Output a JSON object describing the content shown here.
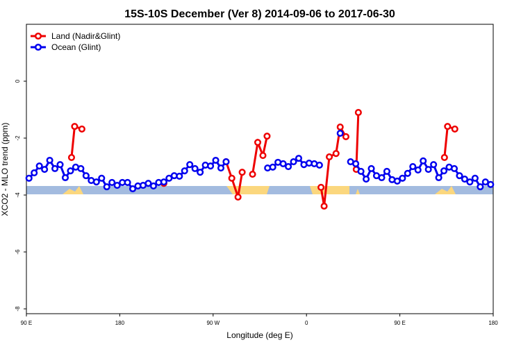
{
  "chart_data": {
    "type": "line",
    "title": "15S-10S December (Ver 8)   2014-09-06 to 2017-06-30",
    "x_label": "Longitude (deg E)",
    "y_label": "XCO2 - MLO trend (ppm)",
    "xlim": [
      90,
      540
    ],
    "ylim": [
      -8.17,
      2
    ],
    "xticks": [
      {
        "value": 90,
        "label": "90 E"
      },
      {
        "value": 180,
        "label": "180"
      },
      {
        "value": 270,
        "label": "90 W"
      },
      {
        "value": 360,
        "label": "0"
      },
      {
        "value": 450,
        "label": "90 E"
      },
      {
        "value": 540,
        "label": "180"
      }
    ],
    "yticks": [
      0,
      -2,
      -4,
      -6,
      -8
    ],
    "legend": "top-left",
    "series": [
      {
        "name": "Land (Nadir&Glint)",
        "color": "#ee0000",
        "x": [
          133.5,
          136.5,
          143.5,
          null,
          222.5,
          null,
          282.5,
          288,
          294,
          298,
          null,
          308,
          313,
          318,
          322,
          null,
          374,
          377,
          382,
          388.5,
          392.5,
          398,
          null,
          408,
          410,
          null,
          493,
          496,
          503
        ],
        "values": [
          -2.68,
          -1.59,
          -1.68,
          null,
          -3.59,
          null,
          -2.83,
          -3.41,
          -4.07,
          -3.2,
          null,
          -3.27,
          -2.15,
          -2.61,
          -1.93,
          null,
          -3.73,
          -4.39,
          -2.66,
          -2.54,
          -1.61,
          -1.95,
          null,
          -3.1,
          -1.1,
          null,
          -2.68,
          -1.59,
          -1.68
        ]
      },
      {
        "name": "Ocean (Glint)",
        "color": "#0000ee",
        "x": [
          92.5,
          97.5,
          102.5,
          107.5,
          112.5,
          117.5,
          122.5,
          127.5,
          132.5,
          137.5,
          142.5,
          147.5,
          152.5,
          157.5,
          162.5,
          167.5,
          172.5,
          177.5,
          182.5,
          187.5,
          192.5,
          197.5,
          202.5,
          207.5,
          212.5,
          217.5,
          222.5,
          227.5,
          232.5,
          237.5,
          242.5,
          247.5,
          252.5,
          257.5,
          262.5,
          267.5,
          272.5,
          277.5,
          282.5,
          null,
          322.5,
          327.5,
          332.5,
          337.5,
          342.5,
          347.5,
          352.5,
          357.5,
          362.5,
          367.5,
          372.5,
          null,
          392.5,
          null,
          402.5,
          407.5,
          412.5,
          417.5,
          422.5,
          427.5,
          432.5,
          437.5,
          442.5,
          447.5,
          452.5,
          457.5,
          462.5,
          467.5,
          472.5,
          477.5,
          482.5,
          487.5,
          492.5,
          497.5,
          502.5,
          507.5,
          512.5,
          517.5,
          522.5,
          527.5,
          532.5,
          537.5
        ],
        "values": [
          -3.41,
          -3.22,
          -2.98,
          -3.1,
          -2.78,
          -3.07,
          -2.93,
          -3.39,
          -3.15,
          -3.02,
          -3.07,
          -3.32,
          -3.49,
          -3.54,
          -3.41,
          -3.71,
          -3.56,
          -3.66,
          -3.56,
          -3.56,
          -3.78,
          -3.68,
          -3.66,
          -3.59,
          -3.68,
          -3.56,
          -3.54,
          -3.41,
          -3.32,
          -3.34,
          -3.15,
          -2.93,
          -3.07,
          -3.2,
          -2.95,
          -2.98,
          -2.78,
          -3.05,
          -2.83,
          null,
          -3.05,
          -3.02,
          -2.85,
          -2.9,
          -3.0,
          -2.83,
          -2.71,
          -2.93,
          -2.88,
          -2.9,
          -2.95,
          null,
          -1.83,
          null,
          -2.83,
          -2.9,
          -3.17,
          -3.44,
          -3.07,
          -3.32,
          -3.39,
          -3.17,
          -3.46,
          -3.51,
          -3.41,
          -3.24,
          -3.0,
          -3.12,
          -2.8,
          -3.1,
          -2.93,
          -3.39,
          -3.15,
          -3.02,
          -3.07,
          -3.32,
          -3.44,
          -3.54,
          -3.41,
          -3.71,
          -3.54,
          -3.63
        ]
      }
    ]
  }
}
